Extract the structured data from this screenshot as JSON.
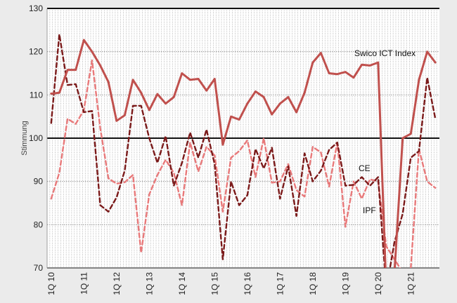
{
  "chart_data": {
    "type": "line",
    "title": "",
    "xlabel": "",
    "ylabel": "Stimmung",
    "ylim": [
      70,
      130
    ],
    "yticks": [
      70,
      80,
      90,
      100,
      110,
      120,
      130
    ],
    "quarters_per_year": 4,
    "start_label": "1Q 10",
    "xtick_labels": [
      "1Q 10",
      "1Q 11",
      "1Q 12",
      "1Q 13",
      "1Q 14",
      "1Q 15",
      "1Q 16",
      "1Q 17",
      "1Q 18",
      "1Q 19",
      "1Q 20",
      "1Q 21"
    ],
    "grid": "vertical monthly dotted, horizontal at each 10",
    "reference_line": 100,
    "series": [
      {
        "name": "Swico ICT Index",
        "color": "#c0504d",
        "style": "solid",
        "values": [
          110.3,
          110.5,
          115.8,
          115.8,
          122.7,
          120.0,
          116.8,
          113.0,
          104.0,
          105.3,
          113.5,
          110.5,
          106.5,
          110.2,
          108.0,
          109.5,
          115.0,
          113.5,
          113.7,
          111.0,
          113.7,
          98.5,
          105.0,
          104.3,
          108.0,
          110.8,
          109.5,
          105.5,
          108.0,
          109.5,
          106.0,
          110.5,
          117.5,
          119.7,
          115.0,
          114.8,
          115.3,
          114.0,
          117.0,
          116.8,
          117.5,
          65.0,
          69.0,
          100.0,
          101.0,
          113.5,
          120.0,
          117.5
        ]
      },
      {
        "name": "CE",
        "color": "#7b1a1a",
        "style": "dashed",
        "values": [
          103.5,
          124.0,
          112.3,
          112.5,
          106.0,
          106.3,
          84.5,
          83.0,
          86.3,
          92.5,
          107.5,
          107.5,
          100.0,
          94.3,
          100.5,
          89.0,
          94.3,
          101.3,
          95.5,
          102.0,
          94.0,
          72.0,
          90.0,
          84.5,
          86.8,
          97.5,
          93.0,
          97.8,
          86.0,
          93.5,
          82.0,
          96.5,
          90.0,
          92.5,
          97.3,
          99.0,
          89.0,
          89.2,
          91.0,
          89.0,
          91.0,
          65.0,
          76.0,
          82.5,
          95.5,
          97.0,
          114.0,
          104.5
        ]
      },
      {
        "name": "IPF",
        "color": "#e8797a",
        "style": "dashed",
        "values": [
          86.0,
          92.0,
          104.5,
          103.3,
          106.5,
          118.0,
          102.3,
          90.7,
          89.5,
          89.8,
          91.5,
          73.5,
          87.0,
          91.5,
          95.0,
          92.0,
          84.5,
          99.0,
          92.3,
          98.0,
          96.0,
          83.0,
          95.5,
          97.0,
          99.5,
          91.0,
          100.0,
          89.7,
          90.0,
          94.0,
          88.0,
          86.5,
          98.0,
          96.7,
          88.8,
          99.0,
          79.5,
          90.0,
          86.0,
          90.5,
          90.0,
          75.0,
          72.0,
          69.0,
          70.0,
          97.5,
          90.0,
          88.5
        ]
      }
    ],
    "annotations": [
      {
        "text": "Swico ICT Index",
        "series": "Swico ICT Index"
      },
      {
        "text": "CE",
        "series": "CE"
      },
      {
        "text": "IPF",
        "series": "IPF"
      }
    ]
  }
}
